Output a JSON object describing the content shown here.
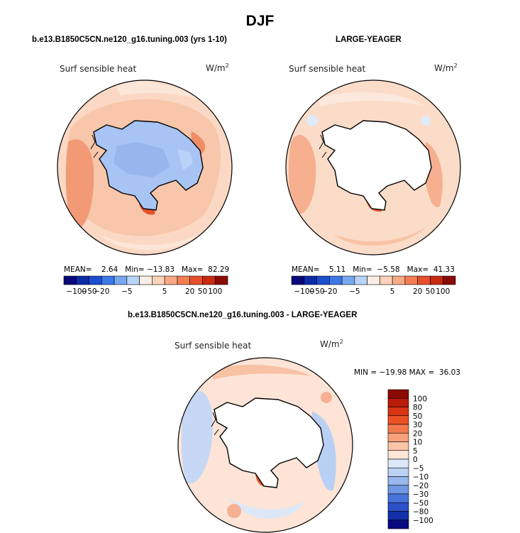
{
  "title": "DJF",
  "panels": [
    {
      "subtitle": "b.e13.B1850C5CN.ne120_g16.tuning.003 (yrs 1-10)",
      "label": "Surf sensible heat",
      "units": "W/m",
      "units_sup": "2",
      "stats": {
        "mean_label": "MEAN=",
        "mean": "2.64",
        "min_label": "Min=",
        "min": "−13.83",
        "max_label": "Max=",
        "max": "82.29"
      }
    },
    {
      "subtitle": "LARGE-YEAGER",
      "label": "Surf sensible heat",
      "units": "W/m",
      "units_sup": "2",
      "stats": {
        "mean_label": "MEAN=",
        "mean": "5.11",
        "min_label": "Min=",
        "min": "−5.58",
        "max_label": "Max=",
        "max": "41.33"
      }
    },
    {
      "subtitle": "b.e13.B1850C5CN.ne120_g16.tuning.003 - LARGE-YEAGER",
      "label": "Surf sensible heat",
      "units": "W/m",
      "units_sup": "2",
      "stats_text": "MIN = −19.98 MAX =  36.03"
    }
  ],
  "chart_data": [
    {
      "type": "heatmap",
      "projection": "south-polar-stereographic",
      "title": "b.e13.B1850C5CN.ne120_g16.tuning.003 (yrs 1-10)",
      "variable": "Surf sensible heat",
      "units": "W/m2",
      "mean": 2.64,
      "min": -13.83,
      "max": 82.29,
      "colorbar": {
        "levels": [
          -100,
          -50,
          -20,
          -5,
          5,
          20,
          50,
          100
        ],
        "labels": [
          "−100",
          "−50",
          "−20",
          "−5",
          "5",
          "20",
          "50",
          "100"
        ],
        "colors": [
          "#08087a",
          "#0c2ca8",
          "#1c4ed0",
          "#3c78e8",
          "#78a8f0",
          "#b8d4f8",
          "#fbeee4",
          "#fcd2ba",
          "#f8aa86",
          "#f47e52",
          "#e8502c",
          "#c82a12",
          "#8c0a04"
        ]
      }
    },
    {
      "type": "heatmap",
      "projection": "south-polar-stereographic",
      "title": "LARGE-YEAGER",
      "variable": "Surf sensible heat",
      "units": "W/m2",
      "mean": 5.11,
      "min": -5.58,
      "max": 41.33,
      "colorbar": {
        "levels": [
          -100,
          -50,
          -20,
          -5,
          5,
          20,
          50,
          100
        ],
        "labels": [
          "−100",
          "−50",
          "−20",
          "−5",
          "5",
          "20",
          "50",
          "100"
        ],
        "colors": [
          "#08087a",
          "#0c2ca8",
          "#1c4ed0",
          "#3c78e8",
          "#78a8f0",
          "#b8d4f8",
          "#fbeee4",
          "#fcd2ba",
          "#f8aa86",
          "#f47e52",
          "#e8502c",
          "#c82a12",
          "#8c0a04"
        ]
      }
    },
    {
      "type": "heatmap",
      "projection": "south-polar-stereographic",
      "title": "b.e13.B1850C5CN.ne120_g16.tuning.003 - LARGE-YEAGER",
      "variable": "Surf sensible heat",
      "units": "W/m2",
      "min": -19.98,
      "max": 36.03,
      "colorbar": {
        "orientation": "vertical",
        "labels": [
          "100",
          "80",
          "50",
          "30",
          "20",
          "10",
          "5",
          "0",
          "−5",
          "−10",
          "−20",
          "−30",
          "−50",
          "−80",
          "−100"
        ],
        "colors": [
          "#8c0a04",
          "#b81c0a",
          "#d83412",
          "#ec5226",
          "#f47a4e",
          "#f8a07c",
          "#fbc4a6",
          "#fde6d8",
          "#dce8f8",
          "#bcd2f4",
          "#98b8ee",
          "#7096e4",
          "#4874da",
          "#2c50c8",
          "#1430a8",
          "#080a80"
        ]
      }
    }
  ]
}
